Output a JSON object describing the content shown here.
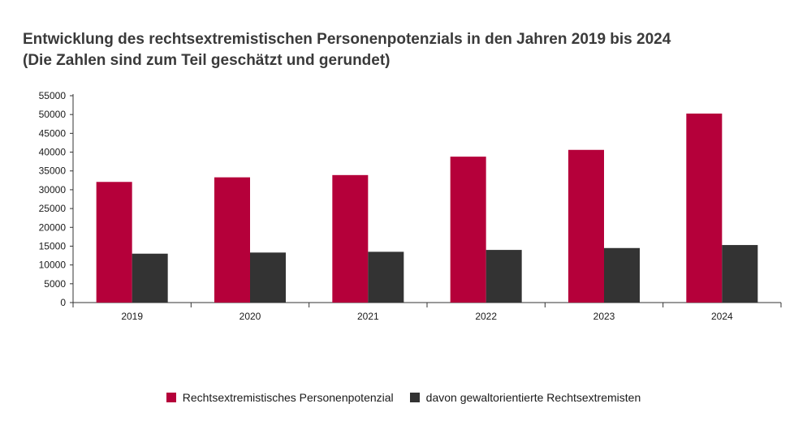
{
  "chart_data": {
    "type": "bar",
    "title": "Entwicklung des rechtsextremistischen Personenpotenzials in den Jahren 2019 bis 2024",
    "subtitle": "(Die Zahlen sind zum Teil geschätzt und gerundet)",
    "categories": [
      "2019",
      "2020",
      "2021",
      "2022",
      "2023",
      "2024"
    ],
    "series": [
      {
        "name": "Rechtsextremistisches Personenpotenzial",
        "color": "#b5003a",
        "values": [
          32080,
          33300,
          33900,
          38800,
          40600,
          50250
        ]
      },
      {
        "name": "davon gewaltorientierte Rechtsextremisten",
        "color": "#333333",
        "values": [
          13000,
          13300,
          13500,
          14000,
          14500,
          15300
        ]
      }
    ],
    "ylim": [
      0,
      55000
    ],
    "yticks": [
      "0",
      "5000",
      "10000",
      "15000",
      "20000",
      "25000",
      "30000",
      "35000",
      "40000",
      "45000",
      "50000",
      "55000"
    ],
    "xlabel": "",
    "ylabel": "",
    "grid": false,
    "legend": "bottom-center"
  }
}
